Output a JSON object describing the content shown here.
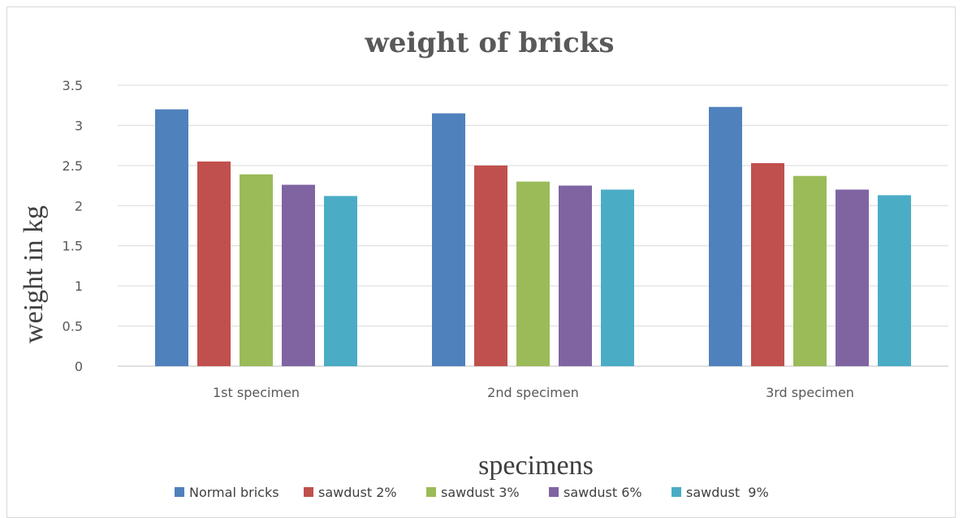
{
  "chart_data": {
    "type": "bar",
    "title": "weight of bricks",
    "xlabel": "specimens",
    "ylabel": "weight in kg",
    "categories": [
      "1st specimen",
      "2nd specimen",
      "3rd specimen"
    ],
    "ylim": [
      0,
      3.5
    ],
    "yticks": [
      "0",
      "0.5",
      "1",
      "1.5",
      "2",
      "2.5",
      "3",
      "3.5"
    ],
    "grid": true,
    "legend_position": "bottom",
    "series": [
      {
        "name": "Normal bricks",
        "color": "#4f81bd",
        "values": [
          3.2,
          3.15,
          3.23
        ]
      },
      {
        "name": "sawdust 2%",
        "color": "#c0504d",
        "values": [
          2.55,
          2.5,
          2.53
        ]
      },
      {
        "name": "sawdust 3%",
        "color": "#9bbb59",
        "values": [
          2.39,
          2.3,
          2.37
        ]
      },
      {
        "name": "sawdust 6%",
        "color": "#8064a2",
        "values": [
          2.26,
          2.25,
          2.2
        ]
      },
      {
        "name": "sawdust  9%",
        "color": "#4bacc6",
        "values": [
          2.12,
          2.2,
          2.13
        ]
      }
    ]
  }
}
